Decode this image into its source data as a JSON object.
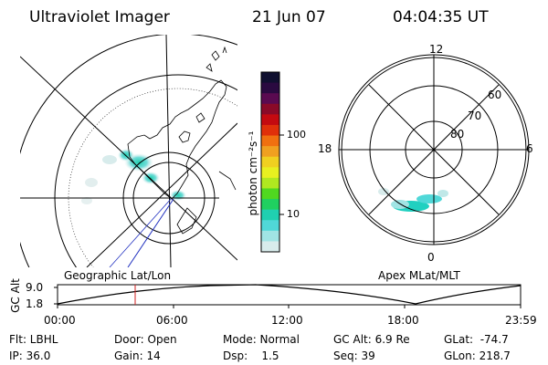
{
  "header": {
    "instrument": "Ultraviolet Imager",
    "date": "21 Jun 07",
    "time": "04:04:35 UT"
  },
  "colorbar": {
    "unit_label": "photon cm⁻²s⁻¹",
    "ticks": [
      "100",
      "10"
    ],
    "colors": [
      "#101030",
      "#2a0a40",
      "#5a0a50",
      "#8a0a28",
      "#c40a10",
      "#e0300a",
      "#f07010",
      "#f0a020",
      "#f0d020",
      "#e8f020",
      "#b0e820",
      "#50d820",
      "#20d060",
      "#20d0b0",
      "#50d8d8",
      "#a0e4e4",
      "#d8ecec"
    ]
  },
  "left_panel": {
    "label": "Geographic Lat/Lon"
  },
  "right_panel": {
    "label": "Apex MLat/MLT",
    "mlt_labels": {
      "top": "12",
      "left": "18",
      "right": "6",
      "bottom": "0"
    },
    "lat_labels": [
      "60",
      "70",
      "80"
    ]
  },
  "altitude_plot": {
    "axis_label": "GC Alt",
    "y_ticks": [
      "9.0",
      "1.8"
    ],
    "x_ticks": [
      "00:00",
      "06:00",
      "12:00",
      "18:00",
      "23:59"
    ]
  },
  "status": {
    "filter": "Flt: LBHL",
    "ip": "IP: 36.0",
    "door": "Door: Open",
    "gain": "Gain: 14",
    "mode": "Mode: Normal",
    "dsp": "Dsp:    1.5",
    "gc_alt": "GC Alt: 6.9 Re",
    "seq": "Seq: 39",
    "glat": "GLat:  -74.7",
    "glon": "GLon: 218.7"
  }
}
